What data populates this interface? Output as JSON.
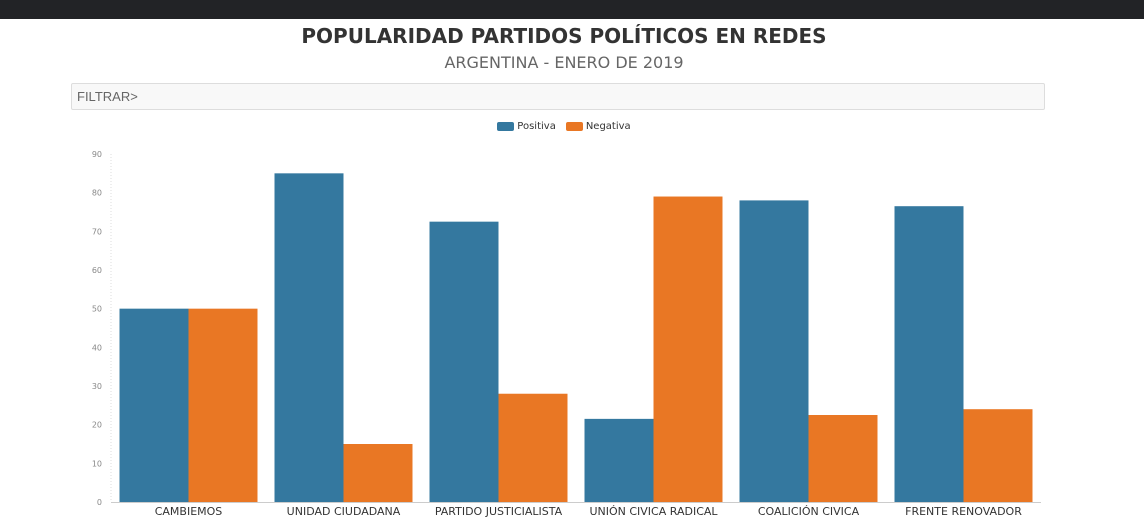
{
  "header": {
    "title": "POPULARIDAD PARTIDOS POLÍTICOS EN REDES",
    "subtitle": "ARGENTINA - ENERO DE 2019"
  },
  "filter": {
    "label": "FILTRAR>"
  },
  "colors": {
    "positiva": "#34789f",
    "negativa": "#e97724",
    "topbar": "#222326"
  },
  "chart_data": {
    "type": "bar",
    "title": "POPULARIDAD PARTIDOS POLÍTICOS EN REDES",
    "subtitle": "ARGENTINA - ENERO DE 2019",
    "categories": [
      "CAMBIEMOS",
      "UNIDAD CIUDADANA",
      "PARTIDO JUSTICIALISTA",
      "UNIÓN CIVICA RADICAL",
      "COALICIÓN CIVICA",
      "FRENTE RENOVADOR"
    ],
    "series": [
      {
        "name": "Positiva",
        "values": [
          50,
          85,
          72.5,
          21.5,
          78,
          76.5
        ]
      },
      {
        "name": "Negativa",
        "values": [
          50,
          15,
          28,
          79,
          22.5,
          24
        ]
      }
    ],
    "ylim": [
      0,
      90
    ],
    "yticks": [
      0,
      10,
      20,
      30,
      40,
      50,
      60,
      70,
      80,
      90
    ],
    "legend_position": "top-center",
    "grid": false
  }
}
